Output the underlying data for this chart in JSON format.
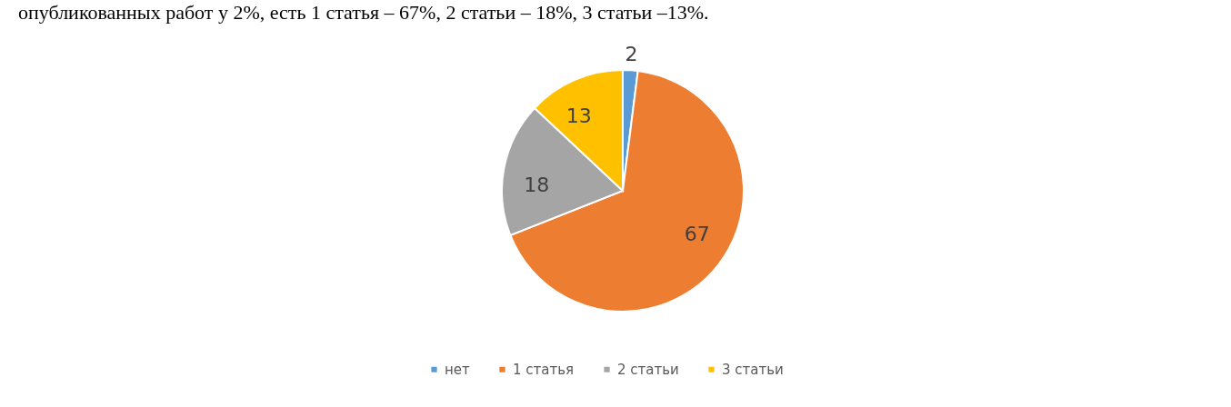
{
  "chart_data": {
    "type": "pie",
    "categories": [
      "нет",
      "1 статья",
      "2 статьи",
      "3 статьи"
    ],
    "values": [
      2,
      67,
      18,
      13
    ],
    "colors": [
      "#5b9bd5",
      "#ed7d31",
      "#a5a5a5",
      "#ffc000"
    ],
    "data_labels": true,
    "legend": "bottom",
    "annotations": [
      "опубликованных работ у 2%, есть 1 статья – 67%, 2 статьи – 18%, 3 статьи –13%."
    ]
  }
}
